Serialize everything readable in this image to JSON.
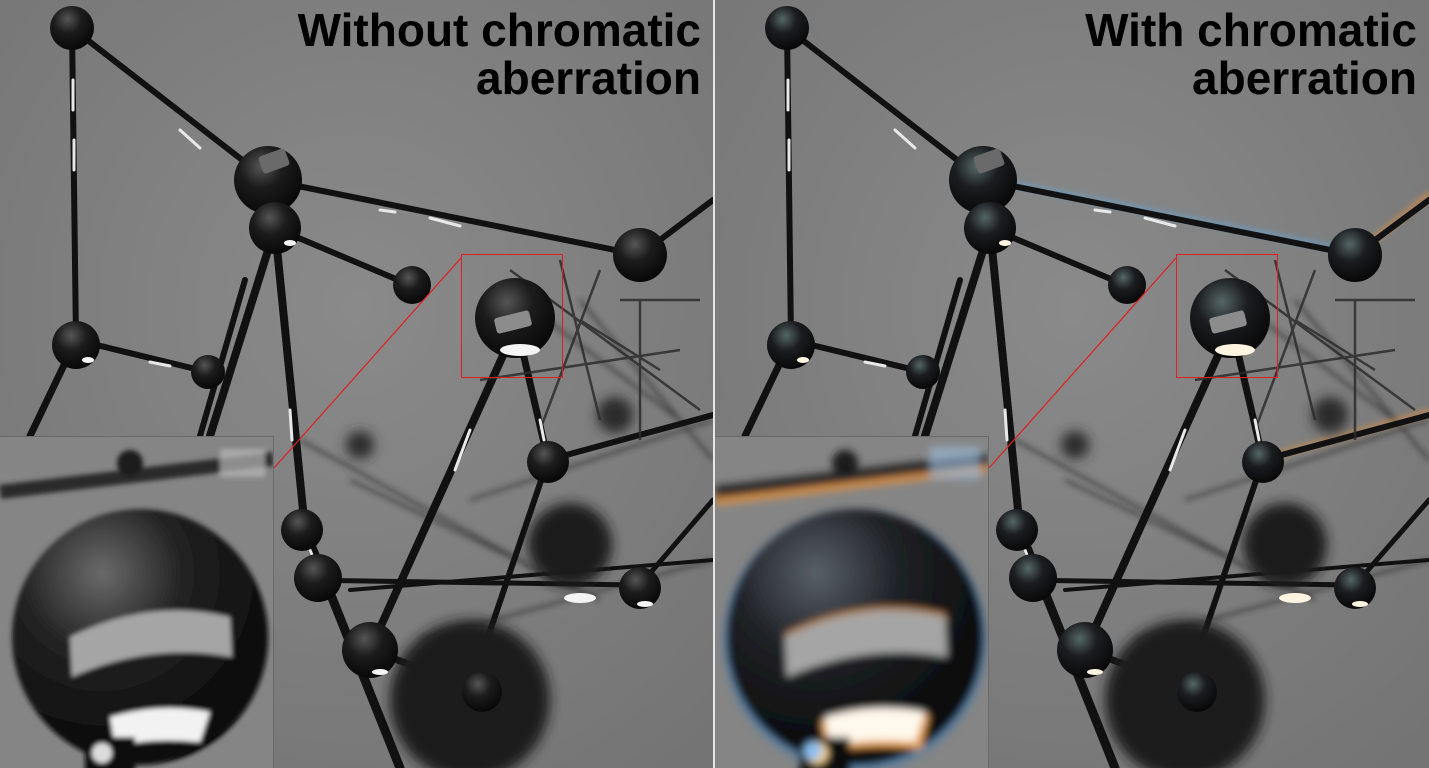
{
  "panels": [
    {
      "title_line1": "Without chromatic",
      "title_line2": "aberration",
      "effect": "none"
    },
    {
      "title_line1": "With chromatic",
      "title_line2": "aberration",
      "effect": "chromatic-aberration"
    }
  ],
  "colors": {
    "background": "#808080",
    "highlight_box": "#e02020",
    "divider": "#e6e6e6",
    "heading_text": "#000000",
    "fringe_warm": "#e09040",
    "fringe_cool": "#60a8e0"
  }
}
